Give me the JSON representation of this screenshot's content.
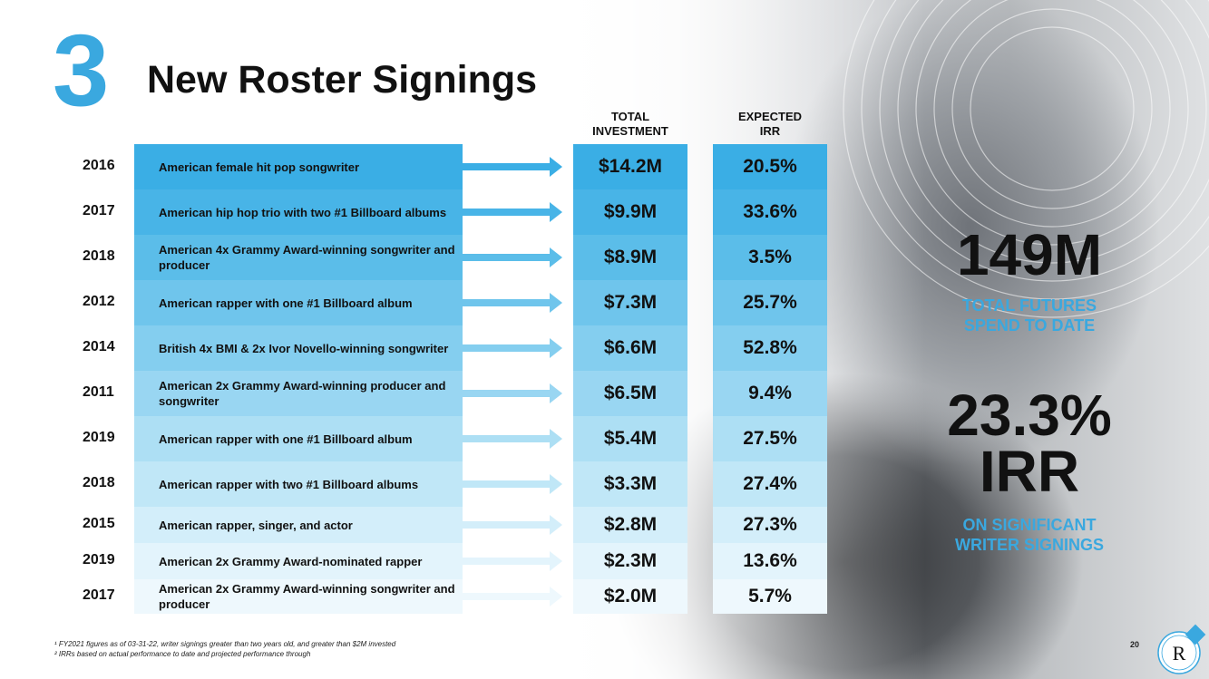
{
  "slide": {
    "number": "3",
    "title": "New Roster Signings",
    "col_investment": [
      "TOTAL",
      "INVESTMENT"
    ],
    "col_irr": [
      "EXPECTED",
      "IRR"
    ],
    "page_number": "20"
  },
  "rows": [
    {
      "year": "2016",
      "desc": "American female hit pop songwriter",
      "investment": "$14.2M",
      "irr": "20.5%",
      "shade": "#3aaee5"
    },
    {
      "year": "2017",
      "desc": "American hip hop trio with two #1 Billboard albums",
      "investment": "$9.9M",
      "irr": "33.6%",
      "shade": "#48b4e7"
    },
    {
      "year": "2018",
      "desc": "American 4x Grammy Award-winning songwriter and producer",
      "investment": "$8.9M",
      "irr": "3.5%",
      "shade": "#5bbde9"
    },
    {
      "year": "2012",
      "desc": "American rapper with one #1 Billboard album",
      "investment": "$7.3M",
      "irr": "25.7%",
      "shade": "#6fc5ec"
    },
    {
      "year": "2014",
      "desc": "British 4x BMI & 2x Ivor Novello-winning songwriter",
      "investment": "$6.6M",
      "irr": "52.8%",
      "shade": "#84ceef"
    },
    {
      "year": "2011",
      "desc": "American 2x Grammy Award-winning producer and songwriter",
      "investment": "$6.5M",
      "irr": "9.4%",
      "shade": "#99d6f2"
    },
    {
      "year": "2019",
      "desc": "American rapper with one #1 Billboard album",
      "investment": "$5.4M",
      "irr": "27.5%",
      "shade": "#addff4"
    },
    {
      "year": "2018",
      "desc": "American rapper with two #1 Billboard albums",
      "investment": "$3.3M",
      "irr": "27.4%",
      "shade": "#c0e7f7"
    },
    {
      "year": "2015",
      "desc": "American rapper, singer, and actor",
      "investment": "$2.8M",
      "irr": "27.3%",
      "shade": "#d3eefa"
    },
    {
      "year": "2019",
      "desc": "American 2x Grammy Award-nominated rapper",
      "investment": "$2.3M",
      "irr": "13.6%",
      "shade": "#e3f4fc"
    },
    {
      "year": "2017",
      "desc": "American 2x Grammy Award-winning songwriter and producer",
      "investment": "$2.0M",
      "irr": "5.7%",
      "shade": "#eef8fd"
    }
  ],
  "stats": {
    "total_value": "149M",
    "total_label": [
      "TOTAL FUTURES",
      "SPEND TO DATE"
    ],
    "irr_value": "23.3%",
    "irr_word": "IRR",
    "irr_label": [
      "ON SIGNIFICANT",
      "WRITER SIGNINGS"
    ]
  },
  "footnotes": [
    "¹ FY2021 figures as of 03-31-22, writer signings greater than two years old, and greater than $2M invested",
    "² IRRs based on actual performance to date and projected performance through"
  ],
  "colors": {
    "accent": "#3aa8df",
    "arrow": "#3aaee5"
  },
  "icons": {
    "logo": "r-logo-icon",
    "arrow": "right-arrow-icon"
  }
}
